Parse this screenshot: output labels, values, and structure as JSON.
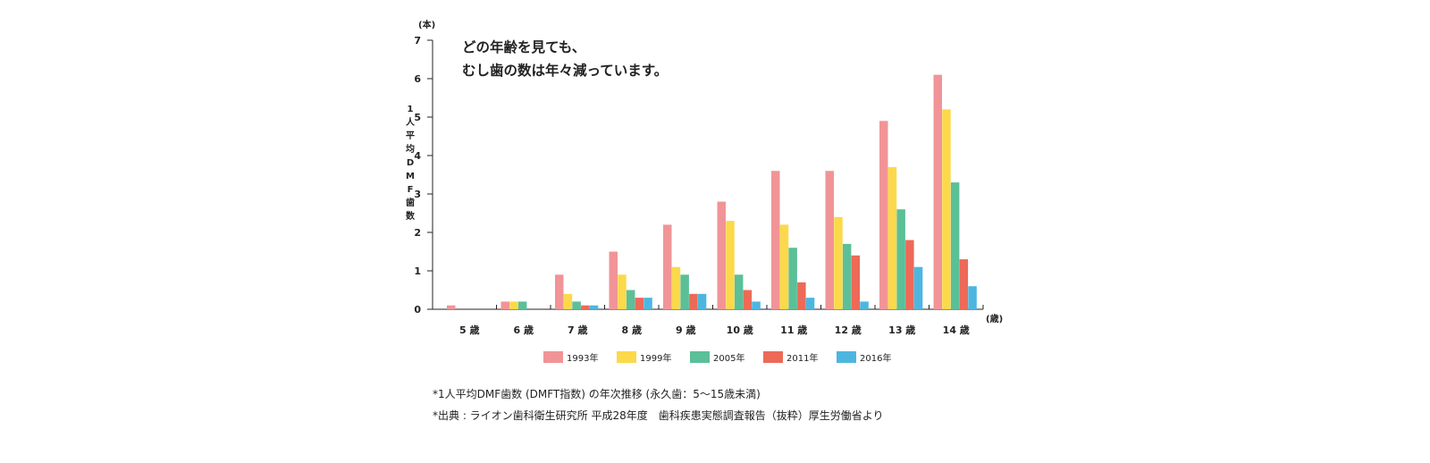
{
  "chart_data": {
    "type": "bar",
    "title": "",
    "annotation": [
      "どの年齢を見ても、",
      "むし歯の数は年々減っています。"
    ],
    "y_unit": "(本)",
    "x_unit": "(歳)",
    "ylabel": "1人平均DMF歯数",
    "ylim": [
      0,
      7
    ],
    "yticks": [
      "0",
      "1",
      "2",
      "3",
      "4",
      "5",
      "6",
      "7"
    ],
    "categories": [
      "5 歳",
      "6 歳",
      "7 歳",
      "8 歳",
      "9 歳",
      "10 歳",
      "11 歳",
      "12 歳",
      "13 歳",
      "14 歳"
    ],
    "series": [
      {
        "name": "1993年",
        "color": "#f19497",
        "values": [
          0.1,
          0.2,
          0.9,
          1.5,
          2.2,
          2.8,
          3.6,
          3.6,
          4.9,
          6.1
        ]
      },
      {
        "name": "1999年",
        "color": "#fbd94a",
        "values": [
          0,
          0.2,
          0.4,
          0.9,
          1.1,
          2.3,
          2.2,
          2.4,
          3.7,
          5.2
        ]
      },
      {
        "name": "2005年",
        "color": "#5bbf98",
        "values": [
          0,
          0.2,
          0.2,
          0.5,
          0.9,
          0.9,
          1.6,
          1.7,
          2.6,
          3.3
        ]
      },
      {
        "name": "2011年",
        "color": "#ec6a57",
        "values": [
          0,
          0,
          0.1,
          0.3,
          0.4,
          0.5,
          0.7,
          1.4,
          1.8,
          1.3
        ]
      },
      {
        "name": "2016年",
        "color": "#4db6e0",
        "values": [
          0,
          0,
          0.1,
          0.3,
          0.4,
          0.2,
          0.3,
          0.2,
          1.1,
          0.6
        ]
      }
    ],
    "legend_position": "bottom",
    "grid": false
  },
  "footnotes": [
    "*1人平均DMF歯数 (DMFT指数) の年次推移 (永久歯：5〜15歳未満)",
    "*出典 : ライオン歯科衛生研究所 平成28年度　歯科疾患実態調査報告（抜粋）厚生労働省より"
  ]
}
